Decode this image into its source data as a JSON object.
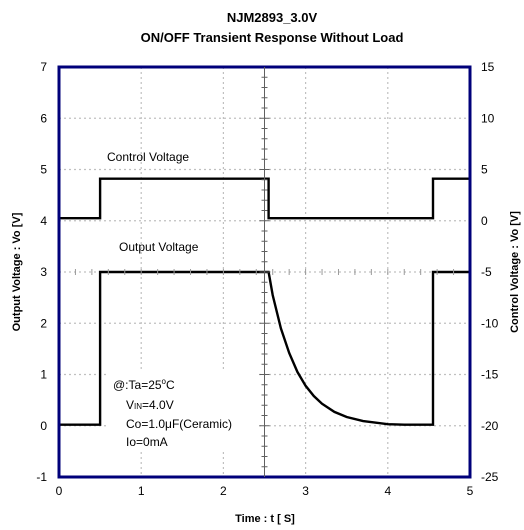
{
  "chart_data": {
    "type": "line",
    "title": "NJM2893_3.0V",
    "subtitle": "ON/OFF Transient Response Without Load",
    "xlabel": "Time : t [ S]",
    "ylabel_left": "Output Voltage : Vo [V]",
    "ylabel_right": "Control Voltage : Vo [V]",
    "xlim": [
      0,
      5
    ],
    "ylim_left": [
      -1,
      7
    ],
    "ylim_right": [
      -25,
      15
    ],
    "x_ticks": [
      "0",
      "1",
      "2",
      "3",
      "4",
      "5"
    ],
    "y_left_ticks": [
      "-1",
      "0",
      "1",
      "2",
      "3",
      "4",
      "5",
      "6",
      "7"
    ],
    "y_right_ticks": [
      "-25",
      "-20",
      "-15",
      "-10",
      "-5",
      "0",
      "5",
      "10",
      "15"
    ],
    "grid": true,
    "series": [
      {
        "name": "Control Voltage",
        "axis": "left",
        "x": [
          0,
          0.5,
          0.5,
          2.55,
          2.55,
          4.55,
          4.55,
          5
        ],
        "y": [
          4.05,
          4.05,
          4.82,
          4.82,
          4.05,
          4.05,
          4.82,
          4.82
        ]
      },
      {
        "name": "Output Voltage",
        "axis": "left",
        "x": [
          0,
          0.5,
          0.5,
          2.55,
          2.6,
          2.7,
          2.8,
          2.9,
          3.0,
          3.1,
          3.2,
          3.35,
          3.5,
          3.7,
          4.0,
          4.2,
          4.55,
          4.55,
          5
        ],
        "y": [
          0.02,
          0.02,
          3.0,
          3.0,
          2.55,
          1.9,
          1.42,
          1.05,
          0.78,
          0.58,
          0.43,
          0.27,
          0.17,
          0.09,
          0.03,
          0.02,
          0.02,
          3.0,
          3.0
        ]
      }
    ],
    "annotations": {
      "conditions": [
        "@:Ta=25",
        "V",
        "IN",
        "=4.0V",
        "Co=1.0",
        "F(Ceramic)",
        "Io=0mA"
      ],
      "degree": "o",
      "unit_c": "C",
      "mu": "μ"
    },
    "colors": {
      "frame": "#00007a",
      "series": "#000000",
      "grid": "#c0c0c0"
    }
  }
}
